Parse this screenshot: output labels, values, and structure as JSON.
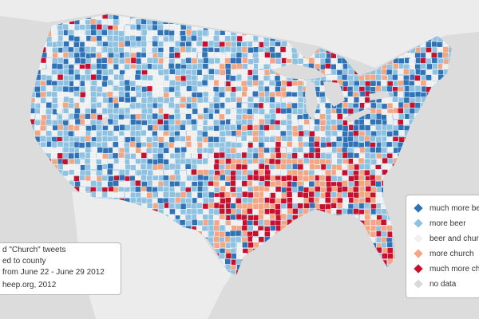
{
  "legend": {
    "items": [
      {
        "label": "much more beer",
        "color": "#2f72b6"
      },
      {
        "label": "more beer",
        "color": "#8fc1e1"
      },
      {
        "label": "beer and church",
        "color": "#f0f0f0"
      },
      {
        "label": "more church",
        "color": "#f4a582"
      },
      {
        "label": "much more church",
        "color": "#c8102e"
      },
      {
        "label": "no data",
        "color": "#d9d9d9"
      }
    ]
  },
  "caption": {
    "lines": [
      "d \"Church\" tweets",
      "ed to county",
      "from June 22 - June 29 2012",
      "heep.org, 2012"
    ]
  },
  "colors": {
    "ocean": "#dcdcdc",
    "land_outside": "#ececec",
    "county_border": "#ffffff"
  }
}
